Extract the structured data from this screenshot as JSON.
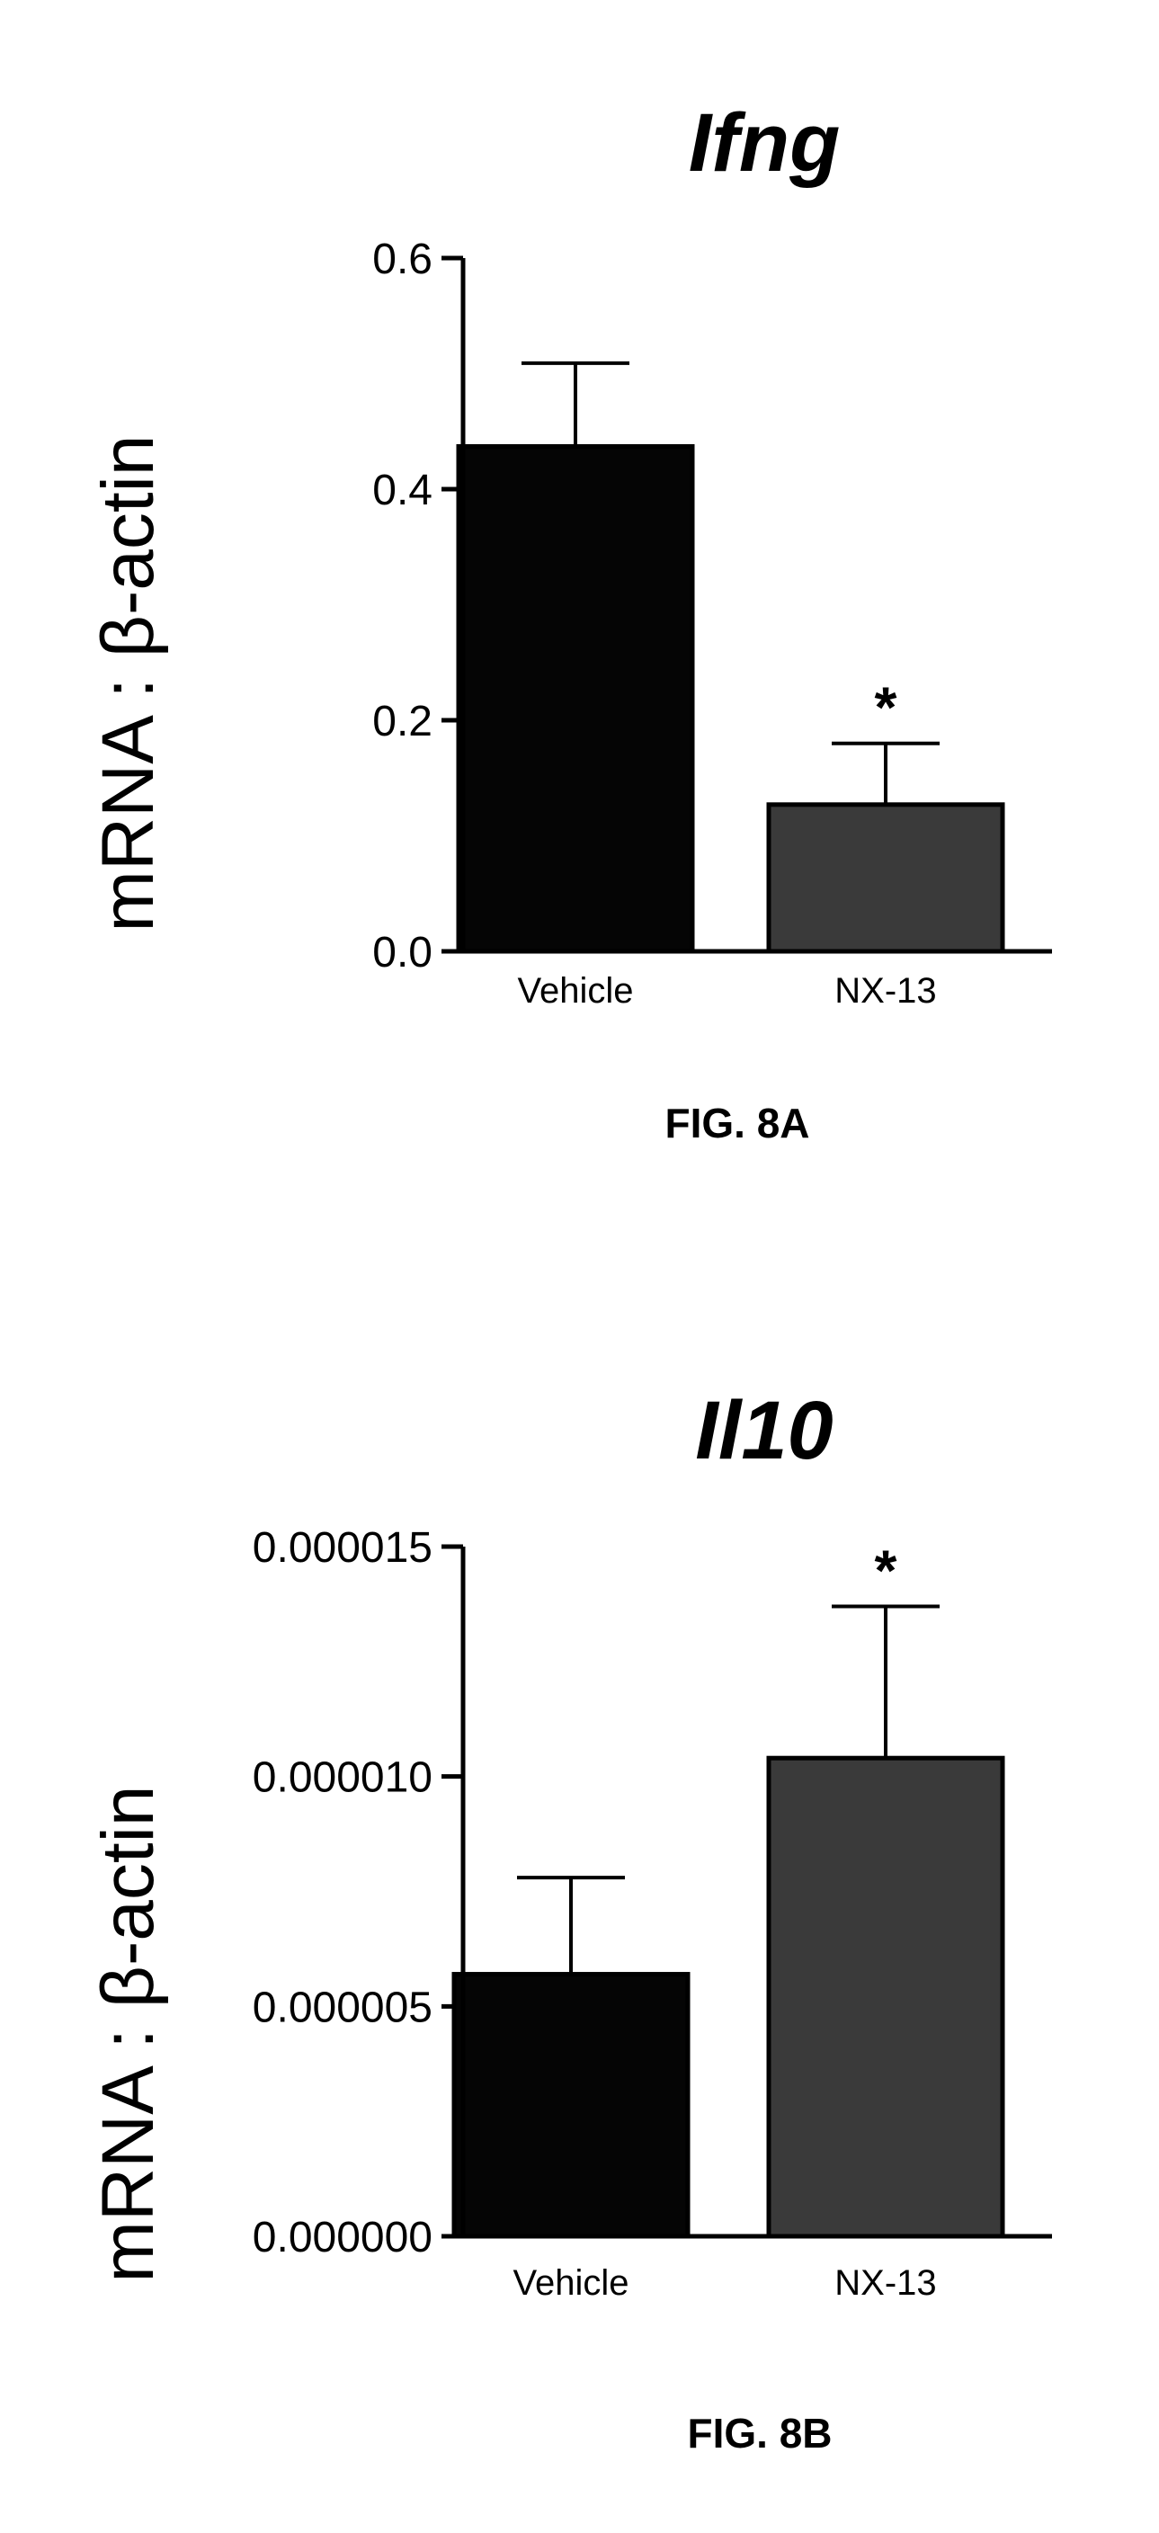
{
  "chart_data": [
    {
      "type": "bar",
      "title": "Ifng",
      "ylabel": "mRNA : β-actin",
      "xlabel": "",
      "caption": "FIG. 8A",
      "categories": [
        "Vehicle",
        "NX-13"
      ],
      "values": [
        0.437,
        0.127
      ],
      "errors": [
        0.072,
        0.053
      ],
      "significance": [
        "",
        "*"
      ],
      "bar_colors": [
        "#050505",
        "#3a3a3a"
      ],
      "ylim": [
        0,
        0.6
      ],
      "yticks": [
        0.0,
        0.2,
        0.4,
        0.6
      ],
      "ytick_labels": [
        "0.0",
        "0.2",
        "0.4",
        "0.6"
      ],
      "grid": false
    },
    {
      "type": "bar",
      "title": "Il10",
      "ylabel": "mRNA : β-actin",
      "xlabel": "",
      "caption": "FIG. 8B",
      "categories": [
        "Vehicle",
        "NX-13"
      ],
      "values": [
        5.7e-06,
        1.04e-05
      ],
      "errors": [
        2.1e-06,
        3.3e-06
      ],
      "significance": [
        "",
        "*"
      ],
      "bar_colors": [
        "#050505",
        "#3a3a3a"
      ],
      "ylim": [
        0,
        1.5e-05
      ],
      "yticks": [
        0,
        5e-06,
        1e-05,
        1.5e-05
      ],
      "ytick_labels": [
        "0.000000",
        "0.000005",
        "0.000010",
        "0.000015"
      ],
      "grid": false
    }
  ]
}
